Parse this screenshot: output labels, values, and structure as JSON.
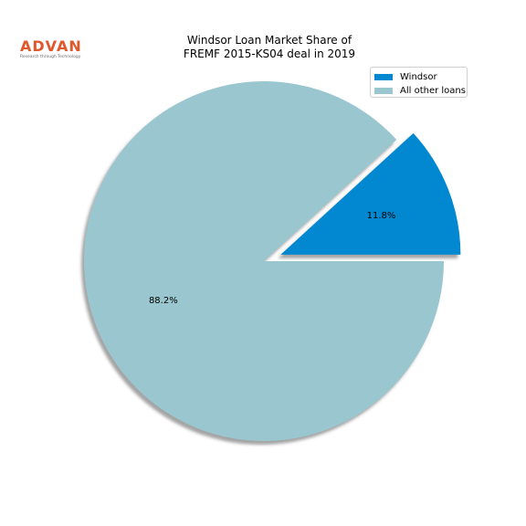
{
  "logo": {
    "word": "ADVAN",
    "tagline": "Research through Technology"
  },
  "chart_data": {
    "type": "pie",
    "title_line1": "Windsor Loan Market Share of",
    "title_line2": "FREMF 2015-KS04 deal in 2019",
    "categories": [
      "Windsor",
      "All other loans"
    ],
    "values": [
      11.8,
      88.2
    ],
    "labels": [
      "11.8%",
      "88.2%"
    ],
    "colors": [
      "#0288d1",
      "#9ac6cf"
    ],
    "explode": [
      0.1,
      0
    ],
    "shadow": true,
    "start_angle_deg": 0,
    "legend_placement": "top-right"
  }
}
